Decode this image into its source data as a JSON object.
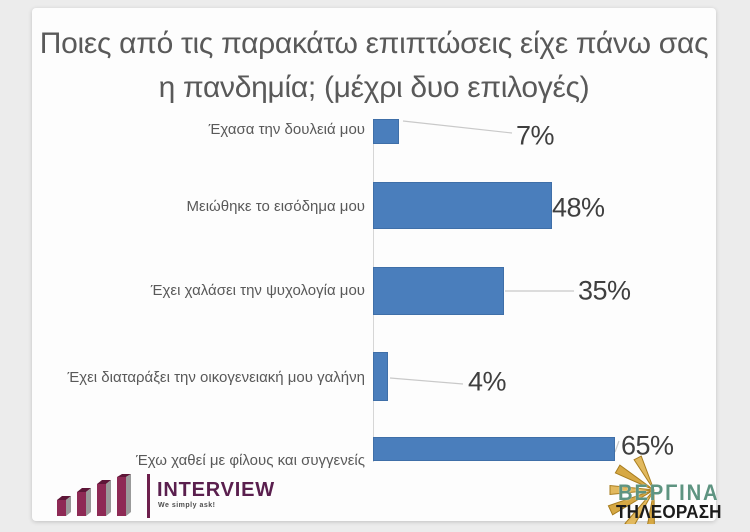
{
  "title": {
    "line1": "Ποιες από τις παρακάτω επιπτώσεις είχε πάνω σας",
    "line2": "η πανδημία; (μέχρι δυο επιλογές)"
  },
  "chart_data": {
    "type": "bar",
    "orientation": "horizontal",
    "title": "Ποιες από τις παρακάτω επιπτώσεις είχε πάνω σας η πανδημία; (μέχρι δυο επιλογές)",
    "categories": [
      "Έχασα την δουλειά μου",
      "Μειώθηκε το εισόδημα μου",
      "Έχει χαλάσει την ψυχολογία μου",
      "Έχει διαταράξει την οικογενειακή μου γαλήνη",
      "Έχω χαθεί με φίλους και συγγενείς"
    ],
    "values": [
      7,
      48,
      35,
      4,
      65
    ],
    "data_labels": [
      "7%",
      "48%",
      "35%",
      "4%",
      "65%"
    ],
    "unit": "%",
    "xlim": [
      0,
      100
    ],
    "grid": false,
    "legend": false,
    "bar_color": "#4a7ebc",
    "bar_border_color": "#3f6fa8",
    "label_color": "#595959",
    "value_label_color": "#3f3f3f"
  },
  "footer": {
    "interview": {
      "name": "INTERVIEW",
      "tagline": "We simply ask!"
    },
    "vergina": {
      "name": "ΒΕΡΓΙΝΑ",
      "subtitle": "ΤΗΛΕΟΡΑΣΗ"
    }
  },
  "colors": {
    "page_background": "#ececec",
    "card_background": "#fdfdfd",
    "title_text": "#595959",
    "leader_line": "#c9c9c9",
    "interview_maroon": "#5a1f4e",
    "vergina_gold": "#d6a844",
    "vergina_teal": "#5e9481"
  }
}
